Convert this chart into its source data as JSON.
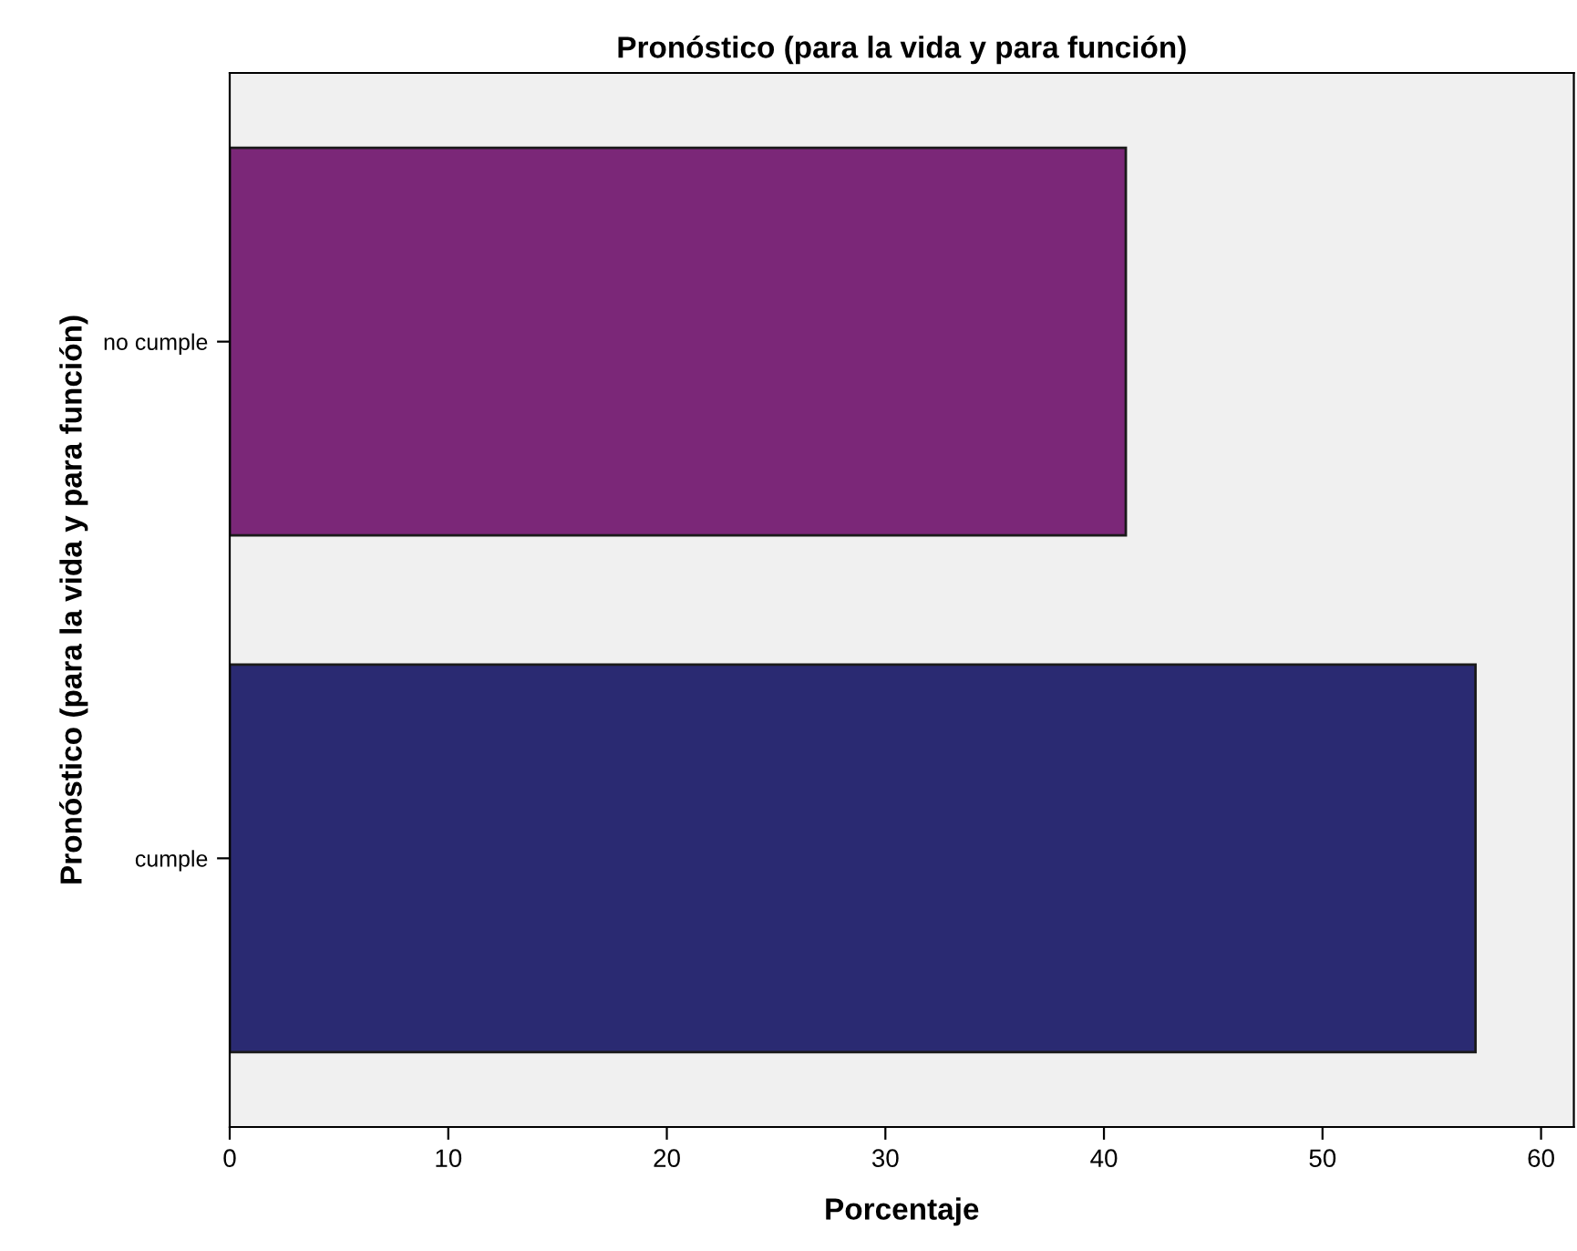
{
  "chart_data": {
    "type": "bar",
    "orientation": "horizontal",
    "title": "Pronóstico (para la vida y para función)",
    "xlabel": "Porcentaje",
    "ylabel": "Pronóstico (para la vida y para función)",
    "categories": [
      "no cumple",
      "cumple"
    ],
    "values": [
      41,
      57
    ],
    "colors": [
      "#7b2778",
      "#2a2a72"
    ],
    "xlim": [
      0,
      61.5
    ],
    "xticks": [
      0,
      10,
      20,
      30,
      40,
      50,
      60
    ],
    "grid": false
  }
}
